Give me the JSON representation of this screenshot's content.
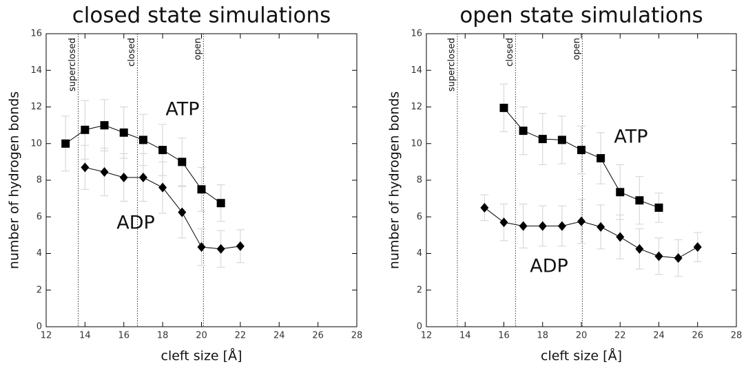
{
  "chart_data": [
    {
      "type": "line",
      "title": "closed state simulations",
      "xlabel": "cleft size [Å]",
      "ylabel": "number of hydrogen bonds",
      "xlim": [
        12,
        28
      ],
      "ylim": [
        0,
        16
      ],
      "xticks": [
        12,
        14,
        16,
        18,
        20,
        22,
        24,
        26,
        28
      ],
      "yticks": [
        0,
        2,
        4,
        6,
        8,
        10,
        12,
        14,
        16
      ],
      "vlines": [
        {
          "value": 13.65,
          "label": "superclosed"
        },
        {
          "value": 16.7,
          "label": "closed"
        },
        {
          "value": 20.1,
          "label": "open"
        }
      ],
      "series": [
        {
          "name": "ATP",
          "color": "#000000",
          "marker": "square",
          "x": [
            13,
            14,
            15,
            16,
            17,
            18,
            19,
            20,
            21
          ],
          "values": [
            10.0,
            10.75,
            11.0,
            10.6,
            10.2,
            9.65,
            9.0,
            7.5,
            6.75
          ],
          "errors": [
            1.5,
            1.6,
            1.4,
            1.4,
            1.4,
            1.4,
            1.3,
            1.2,
            1.0
          ]
        },
        {
          "name": "ADP",
          "color": "#000000",
          "marker": "diamond",
          "x": [
            14,
            15,
            16,
            17,
            18,
            19,
            20,
            21,
            22
          ],
          "values": [
            8.7,
            8.45,
            8.15,
            8.15,
            7.6,
            6.25,
            4.35,
            4.25,
            4.4
          ],
          "errors": [
            1.2,
            1.3,
            1.3,
            1.3,
            1.4,
            1.4,
            1.0,
            1.0,
            0.9
          ]
        }
      ]
    },
    {
      "type": "line",
      "title": "open state simulations",
      "xlabel": "cleft size [Å]",
      "ylabel": "number of hydrogen bonds",
      "xlim": [
        12,
        28
      ],
      "ylim": [
        0,
        16
      ],
      "xticks": [
        12,
        14,
        16,
        18,
        20,
        22,
        24,
        26,
        28
      ],
      "yticks": [
        0,
        2,
        4,
        6,
        8,
        10,
        12,
        14,
        16
      ],
      "vlines": [
        {
          "value": 13.6,
          "label": "superclosed"
        },
        {
          "value": 16.6,
          "label": "closed"
        },
        {
          "value": 20.05,
          "label": "open"
        }
      ],
      "series": [
        {
          "name": "ATP",
          "color": "#000000",
          "marker": "square",
          "x": [
            16,
            17,
            18,
            19,
            20,
            21,
            22,
            23,
            24
          ],
          "values": [
            11.95,
            10.7,
            10.25,
            10.2,
            9.65,
            9.2,
            7.35,
            6.9,
            6.5
          ],
          "errors": [
            1.3,
            1.3,
            1.4,
            1.3,
            1.3,
            1.4,
            1.5,
            1.3,
            0.8
          ]
        },
        {
          "name": "ADP",
          "color": "#000000",
          "marker": "diamond",
          "x": [
            15,
            16,
            17,
            18,
            19,
            20,
            21,
            22,
            23,
            24,
            25,
            26
          ],
          "values": [
            6.5,
            5.7,
            5.5,
            5.5,
            5.5,
            5.75,
            5.45,
            4.9,
            4.25,
            3.85,
            3.75,
            4.35
          ],
          "errors": [
            0.7,
            1.0,
            1.2,
            1.1,
            1.1,
            1.2,
            1.2,
            1.2,
            1.1,
            1.0,
            1.0,
            0.8
          ]
        }
      ]
    }
  ]
}
